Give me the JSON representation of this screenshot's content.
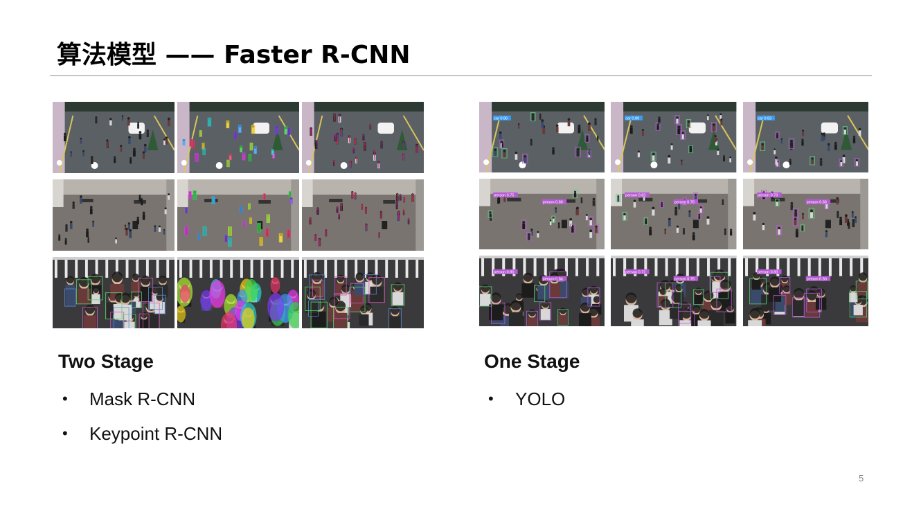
{
  "slide": {
    "title": "算法模型 —— Faster R-CNN",
    "page_number": "5"
  },
  "left_panel": {
    "heading": "Two Stage",
    "bullets": [
      "Mask R-CNN",
      "Keypoint R-CNN"
    ],
    "images": [
      {
        "scene": "street",
        "overlay": "none"
      },
      {
        "scene": "street",
        "overlay": "masks"
      },
      {
        "scene": "street",
        "overlay": "keypoints"
      },
      {
        "scene": "plaza",
        "overlay": "none"
      },
      {
        "scene": "plaza",
        "overlay": "masks"
      },
      {
        "scene": "plaza",
        "overlay": "keypoints"
      },
      {
        "scene": "crowd",
        "overlay": "boxes"
      },
      {
        "scene": "crowd",
        "overlay": "masks"
      },
      {
        "scene": "crowd",
        "overlay": "boxes"
      }
    ]
  },
  "right_panel": {
    "heading": "One Stage",
    "bullets": [
      "YOLO"
    ],
    "images": [
      {
        "scene": "street",
        "overlay": "boxes",
        "labels": [
          "car 0.86"
        ]
      },
      {
        "scene": "street",
        "overlay": "boxes",
        "labels": [
          "car 0.89"
        ]
      },
      {
        "scene": "street",
        "overlay": "boxes",
        "labels": [
          "car 0.83"
        ]
      },
      {
        "scene": "plaza",
        "overlay": "boxes",
        "labels": [
          "person 0.75",
          "person 0.80"
        ]
      },
      {
        "scene": "plaza",
        "overlay": "boxes",
        "labels": [
          "person 0.83",
          "person 0.78"
        ]
      },
      {
        "scene": "plaza",
        "overlay": "boxes",
        "labels": [
          "person 0.79",
          "person 0.83"
        ]
      },
      {
        "scene": "crowd",
        "overlay": "boxes",
        "labels": [
          "person 0.80",
          "person 0.84"
        ]
      },
      {
        "scene": "crowd",
        "overlay": "boxes",
        "labels": [
          "person 0.72",
          "person 0.78"
        ]
      },
      {
        "scene": "crowd",
        "overlay": "boxes",
        "labels": [
          "person 0.83",
          "person 0.80"
        ]
      }
    ]
  },
  "colors": {
    "title_rule": "#8c8c8c",
    "text": "#111111",
    "page_number": "#888888",
    "street_ground": "#5b6065",
    "plaza_ground": "#7a7470",
    "crowd_bg": "#3a3a3c"
  }
}
